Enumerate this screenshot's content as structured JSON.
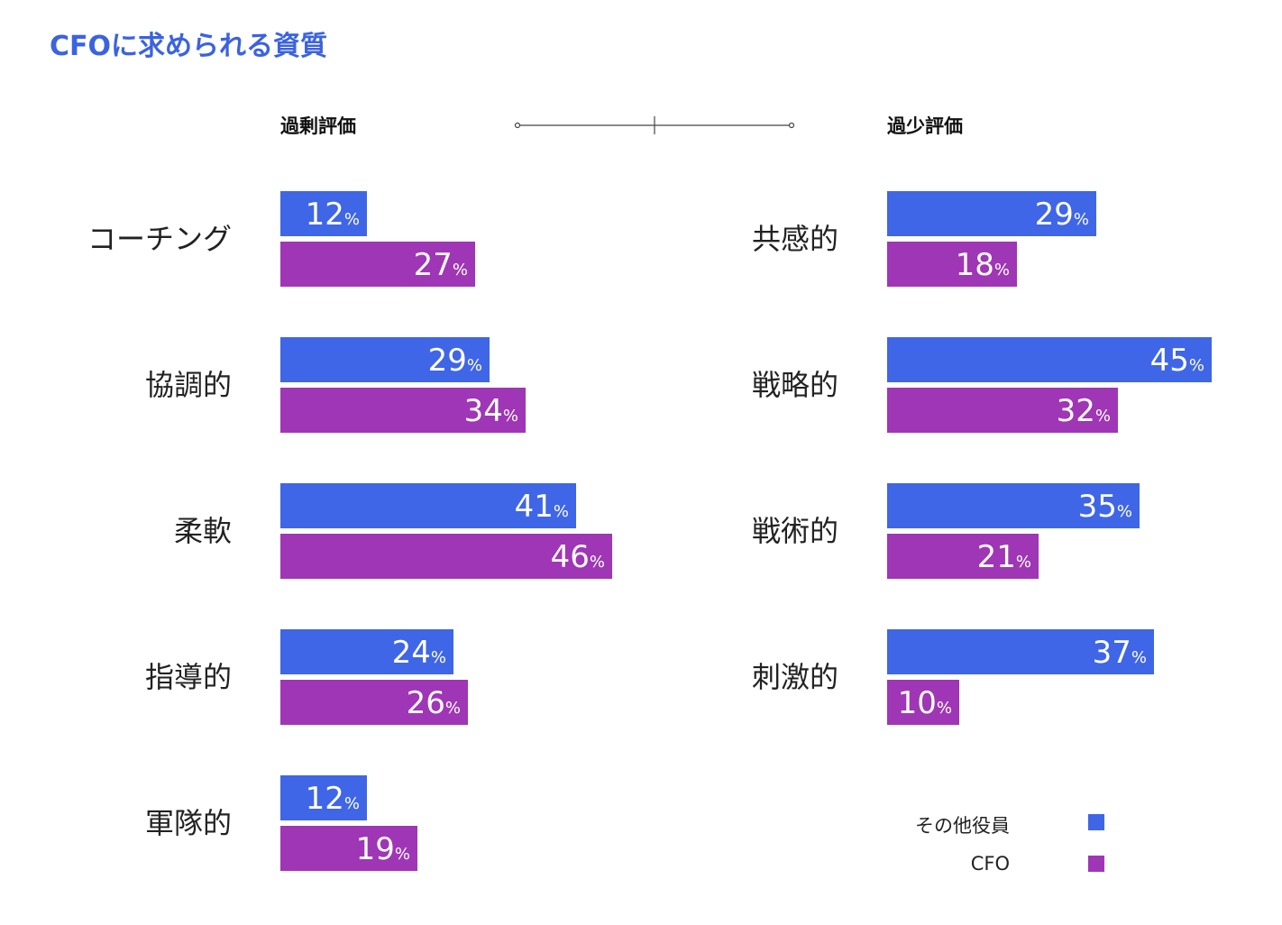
{
  "title": "CFOに求められる資質",
  "colors": {
    "title": "#3b63e0",
    "other_execs": "#3f66e6",
    "cfo": "#9f36b5",
    "label": "#222222",
    "bar_text": "#ffffff"
  },
  "chart_data": {
    "type": "bar",
    "orientation": "horizontal",
    "unit": "%",
    "panels": [
      {
        "title": "過剰評価",
        "categories": [
          "コーチング",
          "協調的",
          "柔軟",
          "指導的",
          "軍隊的"
        ],
        "series": [
          {
            "name": "その他役員",
            "values": [
              12,
              29,
              41,
              24,
              12
            ]
          },
          {
            "name": "CFO",
            "values": [
              27,
              34,
              46,
              26,
              19
            ]
          }
        ]
      },
      {
        "title": "過少評価",
        "categories": [
          "共感的",
          "戦略的",
          "戦術的",
          "刺激的"
        ],
        "series": [
          {
            "name": "その他役員",
            "values": [
              29,
              45,
              35,
              37
            ]
          },
          {
            "name": "CFO",
            "values": [
              18,
              32,
              21,
              10
            ]
          }
        ]
      }
    ],
    "legend": [
      "その他役員",
      "CFO"
    ],
    "legend_position": "bottom-right"
  }
}
